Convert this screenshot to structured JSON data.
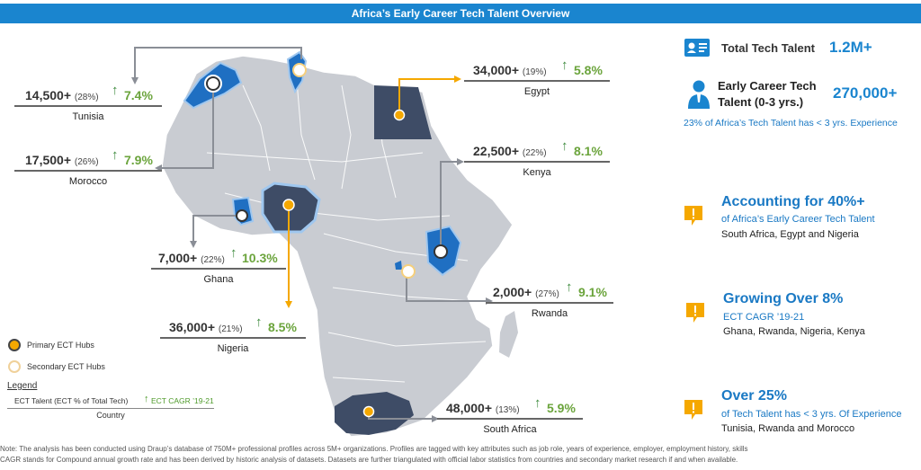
{
  "title": "Africa’s Early Career Tech Talent Overview",
  "stats": {
    "tunisia": {
      "value": "14,500+",
      "pct": "(28%)",
      "cagr": "7.4%",
      "country": "Tunisia"
    },
    "morocco": {
      "value": "17,500+",
      "pct": "(26%)",
      "cagr": "7.9%",
      "country": "Morocco"
    },
    "ghana": {
      "value": "7,000+",
      "pct": "(22%)",
      "cagr": "10.3%",
      "country": "Ghana"
    },
    "nigeria": {
      "value": "36,000+",
      "pct": "(21%)",
      "cagr": "8.5%",
      "country": "Nigeria"
    },
    "egypt": {
      "value": "34,000+",
      "pct": "(19%)",
      "cagr": "5.8%",
      "country": "Egypt"
    },
    "kenya": {
      "value": "22,500+",
      "pct": "(22%)",
      "cagr": "8.1%",
      "country": "Kenya"
    },
    "rwanda": {
      "value": "2,000+",
      "pct": "(27%)",
      "cagr": "9.1%",
      "country": "Rwanda"
    },
    "southafrica": {
      "value": "48,000+",
      "pct": "(13%)",
      "cagr": "5.9%",
      "country": "South Africa"
    }
  },
  "hub_legend": {
    "primary": "Primary ECT Hubs",
    "secondary": "Secondary ECT Hubs"
  },
  "legend": {
    "title": "Legend",
    "ect_label": "ECT Talent (ECT % of Total Tech)",
    "cagr_label": "ECT CAGR ’19-21",
    "country_label": "Country"
  },
  "right_panel": {
    "total": {
      "label": "Total Tech Talent",
      "value": "1.2M+"
    },
    "early": {
      "label_line1": "Early Career Tech",
      "label_line2": "Talent (0-3 yrs.)",
      "value": "270,000+",
      "note": "23% of Africa’s Tech Talent has < 3 yrs. Experience"
    },
    "accounting": {
      "head": "Accounting for 40%+",
      "sub": "of Africa’s Early Career Tech Talent",
      "body": "South Africa, Egypt and Nigeria"
    },
    "growing": {
      "head": "Growing Over 8%",
      "sub": "ECT CAGR ’19-21",
      "body": "Ghana, Rwanda, Nigeria, Kenya"
    },
    "over25": {
      "head": "Over 25%",
      "sub": "of Tech Talent has < 3 yrs. Of Experience",
      "body": "Tunisia, Rwanda and Morocco"
    }
  },
  "note": {
    "line1": "Note: The analysis has been conducted using Draup’s database of 750M+ professional profiles across 5M+ organizations. Profiles are tagged with key attributes such as job role, years of experience, employer, employment history, skills",
    "line2": "CAGR stands for Compound annual growth rate and has been derived by historic analysis of datasets. Datasets are further triangulated with official labor statistics from countries and secondary market research if and when available."
  },
  "colors": {
    "accent": "#1a85cf",
    "growth": "#6ba43c",
    "primary_hub": "#f5a800",
    "dark_country": "#3e4c66",
    "blue_country": "#1f6fc2",
    "map_gray": "#c9ccd2"
  }
}
